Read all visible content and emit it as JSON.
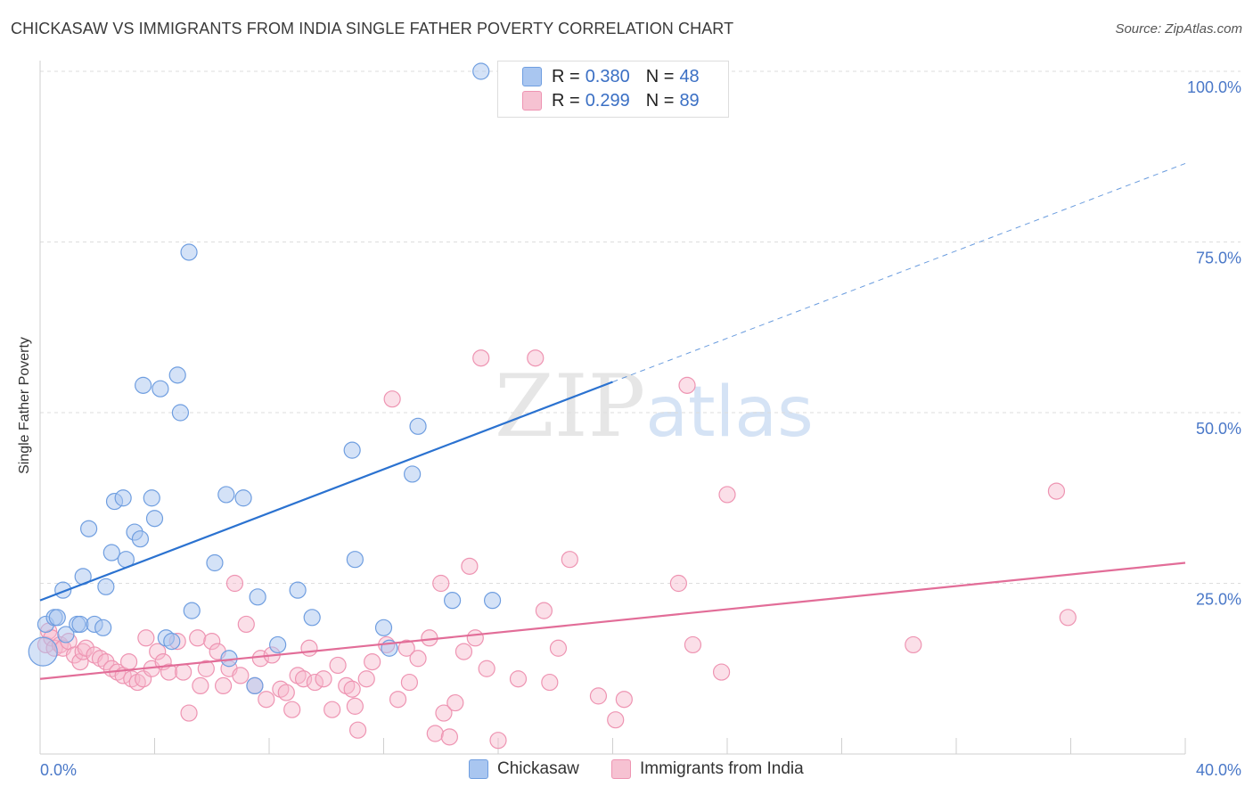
{
  "title": "CHICKASAW VS IMMIGRANTS FROM INDIA SINGLE FATHER POVERTY CORRELATION CHART",
  "source": "Source: ZipAtlas.com",
  "watermark": {
    "zip": "ZIP",
    "atlas": "atlas"
  },
  "legend_top": {
    "rows": [
      {
        "r_label": "R = ",
        "r_value": "0.380",
        "n_label": "N = ",
        "n_value": "48"
      },
      {
        "r_label": "R = ",
        "r_value": "0.299",
        "n_label": "N = ",
        "n_value": "89"
      }
    ]
  },
  "legend_bottom": [
    "Chickasaw",
    "Immigrants from India"
  ],
  "colors": {
    "blue_fill": "#a9c6f0",
    "blue_stroke": "#6f9ee0",
    "blue_line": "#2b72d0",
    "pink_fill": "#f6b9cc",
    "pink_stroke": "#ee94b2",
    "pink_line": "#e26d98",
    "tick_text": "#4a78c8",
    "grid": "#dddddd"
  },
  "chart_data": {
    "type": "scatter",
    "title": "CHICKASAW VS IMMIGRANTS FROM INDIA SINGLE FATHER POVERTY CORRELATION CHART",
    "xlabel": "",
    "ylabel": "Single Father Poverty",
    "xlim": [
      0,
      40
    ],
    "ylim": [
      0,
      100
    ],
    "x_tick_labels": [
      "0.0%",
      "40.0%"
    ],
    "y_tick_labels": [
      "25.0%",
      "50.0%",
      "75.0%",
      "100.0%"
    ],
    "y_ticks": [
      25,
      50,
      75,
      100
    ],
    "grid": "horizontal dashed",
    "legend_placement": "top-center",
    "series": [
      {
        "name": "Chickasaw",
        "R": 0.38,
        "N": 48,
        "trend": {
          "x0": 0,
          "y0": 22.5,
          "x1": 20,
          "y1": 54.5,
          "dashed_to_x": 40,
          "dashed_to_y": 86.5
        },
        "points": [
          [
            0.1,
            15.0
          ],
          [
            0.2,
            19.0
          ],
          [
            0.5,
            20.0
          ],
          [
            0.6,
            20.0
          ],
          [
            0.8,
            24.0
          ],
          [
            0.9,
            17.5
          ],
          [
            1.3,
            19.0
          ],
          [
            1.4,
            19.0
          ],
          [
            1.5,
            26.0
          ],
          [
            1.7,
            33.0
          ],
          [
            1.9,
            19.0
          ],
          [
            2.2,
            18.5
          ],
          [
            2.3,
            24.5
          ],
          [
            2.5,
            29.5
          ],
          [
            2.6,
            37.0
          ],
          [
            2.9,
            37.5
          ],
          [
            3.0,
            28.5
          ],
          [
            3.3,
            32.5
          ],
          [
            3.5,
            31.5
          ],
          [
            3.6,
            54.0
          ],
          [
            3.9,
            37.5
          ],
          [
            4.0,
            34.5
          ],
          [
            4.2,
            53.5
          ],
          [
            4.4,
            17.0
          ],
          [
            4.6,
            16.5
          ],
          [
            4.8,
            55.5
          ],
          [
            4.9,
            50.0
          ],
          [
            5.2,
            73.5
          ],
          [
            5.3,
            21.0
          ],
          [
            6.1,
            28.0
          ],
          [
            6.5,
            38.0
          ],
          [
            6.6,
            14.0
          ],
          [
            7.1,
            37.5
          ],
          [
            7.5,
            10.0
          ],
          [
            7.6,
            23.0
          ],
          [
            8.3,
            16.0
          ],
          [
            9.0,
            24.0
          ],
          [
            9.5,
            20.0
          ],
          [
            10.9,
            44.5
          ],
          [
            11.0,
            28.5
          ],
          [
            12.0,
            18.5
          ],
          [
            12.2,
            15.5
          ],
          [
            13.0,
            41.0
          ],
          [
            13.2,
            48.0
          ],
          [
            14.4,
            22.5
          ],
          [
            15.4,
            100.0
          ],
          [
            15.8,
            22.5
          ],
          [
            16.9,
            100.0
          ]
        ]
      },
      {
        "name": "Immigrants from India",
        "R": 0.299,
        "N": 89,
        "trend": {
          "x0": 0,
          "y0": 11.0,
          "x1": 40,
          "y1": 28.0
        },
        "points": [
          [
            0.2,
            16.0
          ],
          [
            0.3,
            18.0
          ],
          [
            0.4,
            17.0
          ],
          [
            0.5,
            15.5
          ],
          [
            0.7,
            16.0
          ],
          [
            0.8,
            15.5
          ],
          [
            1.0,
            16.5
          ],
          [
            1.2,
            14.5
          ],
          [
            1.4,
            13.5
          ],
          [
            1.5,
            15.0
          ],
          [
            1.6,
            15.5
          ],
          [
            1.9,
            14.5
          ],
          [
            2.1,
            14.0
          ],
          [
            2.3,
            13.5
          ],
          [
            2.5,
            12.5
          ],
          [
            2.7,
            12.0
          ],
          [
            2.9,
            11.5
          ],
          [
            3.1,
            13.5
          ],
          [
            3.2,
            11.0
          ],
          [
            3.4,
            10.5
          ],
          [
            3.6,
            11.0
          ],
          [
            3.7,
            17.0
          ],
          [
            3.9,
            12.5
          ],
          [
            4.1,
            15.0
          ],
          [
            4.3,
            13.5
          ],
          [
            4.5,
            12.0
          ],
          [
            4.8,
            16.5
          ],
          [
            5.0,
            12.0
          ],
          [
            5.2,
            6.0
          ],
          [
            5.5,
            17.0
          ],
          [
            5.6,
            10.0
          ],
          [
            5.8,
            12.5
          ],
          [
            6.0,
            16.5
          ],
          [
            6.2,
            15.0
          ],
          [
            6.4,
            10.0
          ],
          [
            6.6,
            12.5
          ],
          [
            6.8,
            25.0
          ],
          [
            7.0,
            11.5
          ],
          [
            7.2,
            19.0
          ],
          [
            7.5,
            10.0
          ],
          [
            7.7,
            14.0
          ],
          [
            7.9,
            8.0
          ],
          [
            8.1,
            14.5
          ],
          [
            8.4,
            9.5
          ],
          [
            8.6,
            9.0
          ],
          [
            8.8,
            6.5
          ],
          [
            9.0,
            11.5
          ],
          [
            9.2,
            11.0
          ],
          [
            9.4,
            15.5
          ],
          [
            9.6,
            10.5
          ],
          [
            9.9,
            11.0
          ],
          [
            10.2,
            6.5
          ],
          [
            10.4,
            13.0
          ],
          [
            10.7,
            10.0
          ],
          [
            10.9,
            9.5
          ],
          [
            11.0,
            7.0
          ],
          [
            11.1,
            3.5
          ],
          [
            11.4,
            11.0
          ],
          [
            11.6,
            13.5
          ],
          [
            12.1,
            16.0
          ],
          [
            12.3,
            52.0
          ],
          [
            12.5,
            8.0
          ],
          [
            12.8,
            15.5
          ],
          [
            12.9,
            10.5
          ],
          [
            13.2,
            14.0
          ],
          [
            13.6,
            17.0
          ],
          [
            13.8,
            3.0
          ],
          [
            14.1,
            6.0
          ],
          [
            14.3,
            2.5
          ],
          [
            14.5,
            7.5
          ],
          [
            14.8,
            15.0
          ],
          [
            15.0,
            27.5
          ],
          [
            15.2,
            17.0
          ],
          [
            15.4,
            58.0
          ],
          [
            15.6,
            12.5
          ],
          [
            16.0,
            2.0
          ],
          [
            16.7,
            11.0
          ],
          [
            17.3,
            58.0
          ],
          [
            17.6,
            21.0
          ],
          [
            17.8,
            10.5
          ],
          [
            18.1,
            15.5
          ],
          [
            18.5,
            28.5
          ],
          [
            19.5,
            8.5
          ],
          [
            20.1,
            5.0
          ],
          [
            20.4,
            8.0
          ],
          [
            22.3,
            25.0
          ],
          [
            22.6,
            54.0
          ],
          [
            22.8,
            16.0
          ],
          [
            24.0,
            38.0
          ]
        ],
        "extra_points": [
          [
            23.8,
            12.0
          ],
          [
            30.5,
            16.0
          ],
          [
            35.5,
            38.5
          ],
          [
            35.9,
            20.0
          ],
          [
            14.0,
            25.0
          ]
        ]
      }
    ]
  }
}
